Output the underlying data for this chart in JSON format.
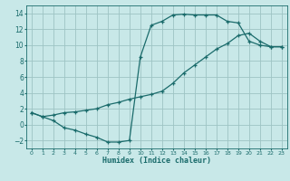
{
  "xlabel": "Humidex (Indice chaleur)",
  "bg_color": "#c8e8e8",
  "grid_color": "#9dc4c4",
  "line_color": "#1a6b6b",
  "xlim": [
    -0.5,
    23.5
  ],
  "ylim": [
    -3.0,
    15.0
  ],
  "xticks": [
    0,
    1,
    2,
    3,
    4,
    5,
    6,
    7,
    8,
    9,
    10,
    11,
    12,
    13,
    14,
    15,
    16,
    17,
    18,
    19,
    20,
    21,
    22,
    23
  ],
  "yticks": [
    -2,
    0,
    2,
    4,
    6,
    8,
    10,
    12,
    14
  ],
  "curve1_x": [
    0,
    1,
    2,
    3,
    4,
    5,
    6,
    7,
    8,
    9,
    10,
    11,
    12,
    13,
    14,
    15,
    16,
    17,
    18,
    19,
    20,
    21,
    22,
    23
  ],
  "curve1_y": [
    1.5,
    1.0,
    0.5,
    -0.4,
    -0.7,
    -1.2,
    -1.6,
    -2.2,
    -2.2,
    -2.0,
    8.5,
    12.5,
    13.0,
    13.8,
    13.9,
    13.8,
    13.8,
    13.8,
    13.0,
    12.8,
    10.5,
    10.0,
    9.8,
    9.8
  ],
  "curve2_x": [
    0,
    1,
    2,
    3,
    4,
    5,
    6,
    7,
    8,
    9,
    10,
    11,
    12,
    13,
    14,
    15,
    16,
    17,
    18,
    19,
    20,
    21,
    22,
    23
  ],
  "curve2_y": [
    1.5,
    1.0,
    1.2,
    1.5,
    1.6,
    1.8,
    2.0,
    2.5,
    2.8,
    3.2,
    3.5,
    3.8,
    4.2,
    5.2,
    6.5,
    7.5,
    8.5,
    9.5,
    10.2,
    11.2,
    11.5,
    10.5,
    9.8,
    9.8
  ]
}
